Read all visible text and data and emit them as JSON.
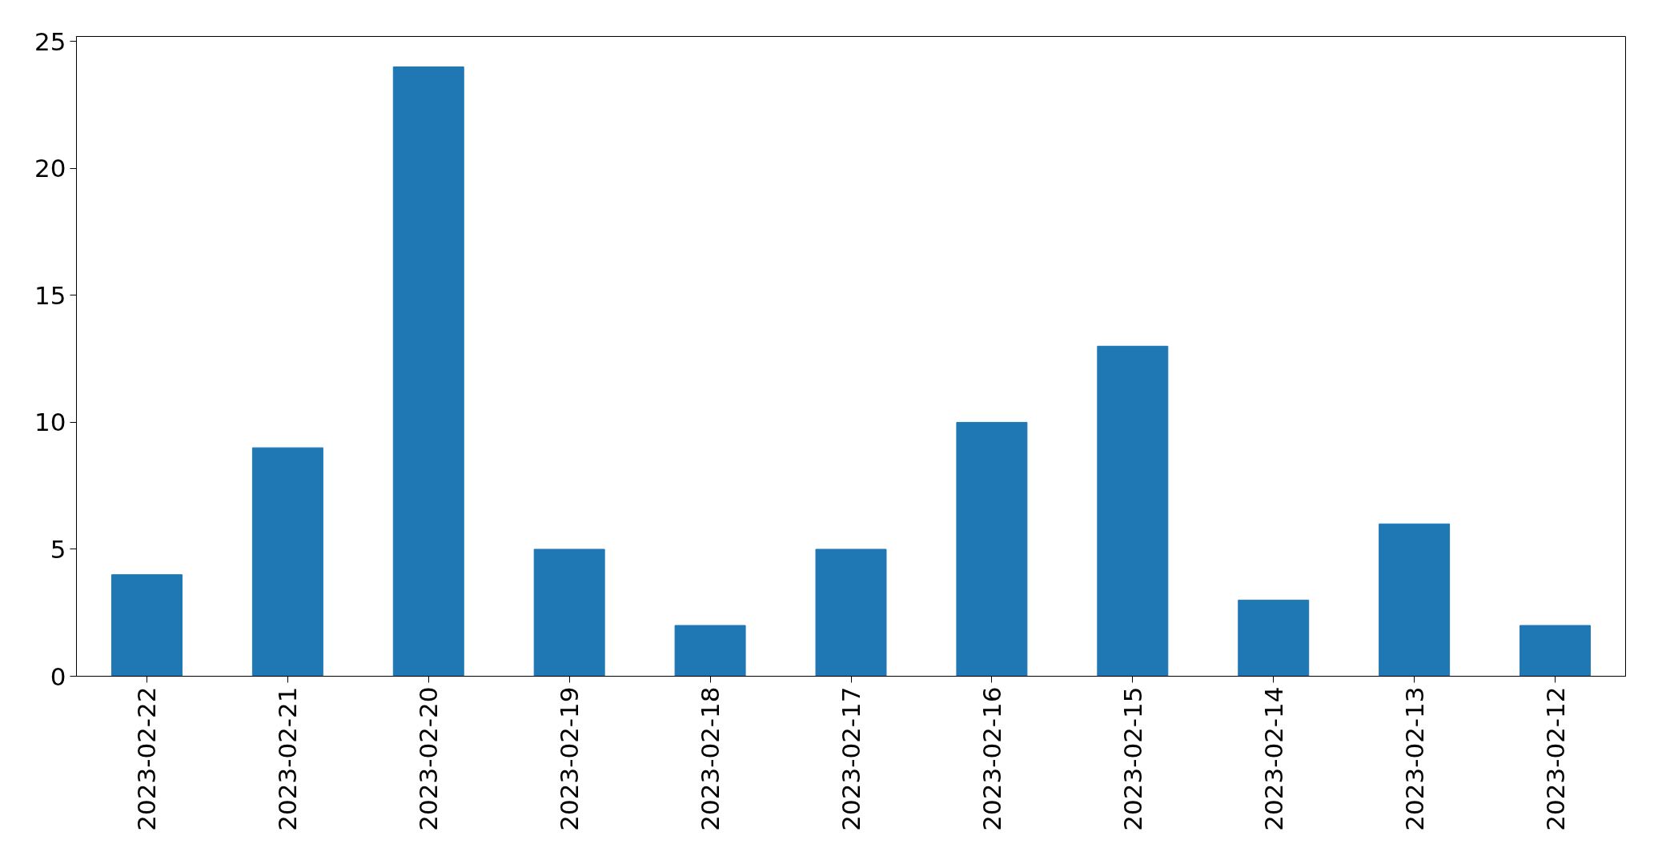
{
  "chart_data": {
    "type": "bar",
    "categories": [
      "2023-02-22",
      "2023-02-21",
      "2023-02-20",
      "2023-02-19",
      "2023-02-18",
      "2023-02-17",
      "2023-02-16",
      "2023-02-15",
      "2023-02-14",
      "2023-02-13",
      "2023-02-12"
    ],
    "values": [
      4,
      9,
      24,
      5,
      2,
      5,
      10,
      13,
      3,
      6,
      2
    ],
    "color": "#1f77b4",
    "ylim": [
      0,
      25.2
    ],
    "yticks": [
      0,
      5,
      10,
      15,
      20,
      25
    ],
    "grid": false
  }
}
